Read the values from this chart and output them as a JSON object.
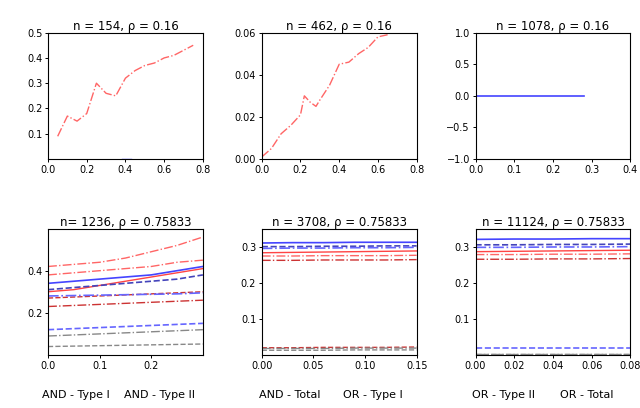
{
  "panels": [
    {
      "title": "n = 154, ρ = 0.16",
      "xlim": [
        0,
        0.8
      ],
      "ylim": [
        0,
        0.5
      ],
      "yticks": [
        0.1,
        0.2,
        0.3,
        0.4,
        0.5
      ],
      "xticks": [
        0,
        0.2,
        0.4,
        0.6,
        0.8
      ],
      "lines": [
        {
          "color": "#FF6666",
          "style": "-.",
          "lw": 1.0,
          "x": [
            0.05,
            0.1,
            0.15,
            0.2,
            0.25,
            0.3,
            0.35,
            0.4,
            0.45,
            0.5,
            0.55,
            0.6,
            0.65,
            0.7,
            0.75
          ],
          "y": [
            0.09,
            0.17,
            0.15,
            0.18,
            0.3,
            0.26,
            0.25,
            0.32,
            0.35,
            0.37,
            0.38,
            0.4,
            0.41,
            0.43,
            0.45
          ]
        },
        {
          "color": "#4444FF",
          "style": "-",
          "lw": 1.0,
          "x": [
            0.38,
            0.43
          ],
          "y": [
            0.002,
            0.002
          ]
        }
      ]
    },
    {
      "title": "n = 462, ρ = 0.16",
      "xlim": [
        0,
        0.8
      ],
      "ylim": [
        0,
        0.06
      ],
      "yticks": [
        0,
        0.02,
        0.04,
        0.06
      ],
      "xticks": [
        0,
        0.2,
        0.4,
        0.6,
        0.8
      ],
      "lines": [
        {
          "color": "#FF6666",
          "style": "-.",
          "lw": 1.0,
          "x": [
            0.0,
            0.05,
            0.1,
            0.15,
            0.2,
            0.22,
            0.25,
            0.28,
            0.3,
            0.35,
            0.4,
            0.45,
            0.5,
            0.55,
            0.6,
            0.65
          ],
          "y": [
            0.001,
            0.005,
            0.012,
            0.016,
            0.021,
            0.03,
            0.027,
            0.025,
            0.028,
            0.035,
            0.045,
            0.046,
            0.05,
            0.053,
            0.058,
            0.059
          ]
        }
      ]
    },
    {
      "title": "n = 1078, ρ = 0.16",
      "xlim": [
        0,
        0.4
      ],
      "ylim": [
        -1,
        1
      ],
      "yticks": [
        -1,
        -0.5,
        0,
        0.5,
        1
      ],
      "xticks": [
        0,
        0.1,
        0.2,
        0.3,
        0.4
      ],
      "lines": [
        {
          "color": "#4444FF",
          "style": "-",
          "lw": 1.2,
          "x": [
            0.0,
            0.28
          ],
          "y": [
            0.0,
            0.0
          ]
        }
      ]
    },
    {
      "title": "n= 1236, ρ = 0.75833",
      "xlim": [
        0,
        0.3
      ],
      "ylim": [
        0,
        0.6
      ],
      "yticks": [
        0.2,
        0.4
      ],
      "xticks": [
        0,
        0.1,
        0.2
      ],
      "lines": [
        {
          "color": "#FF6666",
          "style": "-.",
          "lw": 1.0,
          "x": [
            0.0,
            0.05,
            0.1,
            0.15,
            0.2,
            0.25,
            0.3
          ],
          "y": [
            0.42,
            0.43,
            0.44,
            0.46,
            0.49,
            0.52,
            0.56
          ]
        },
        {
          "color": "#FF6666",
          "style": "-.",
          "lw": 1.0,
          "x": [
            0.0,
            0.05,
            0.1,
            0.15,
            0.2,
            0.25,
            0.3
          ],
          "y": [
            0.38,
            0.39,
            0.4,
            0.41,
            0.42,
            0.44,
            0.45
          ]
        },
        {
          "color": "#FF4444",
          "style": "-",
          "lw": 1.0,
          "x": [
            0.0,
            0.05,
            0.1,
            0.15,
            0.2,
            0.25,
            0.3
          ],
          "y": [
            0.3,
            0.31,
            0.33,
            0.35,
            0.37,
            0.39,
            0.41
          ]
        },
        {
          "color": "#4444FF",
          "style": "-",
          "lw": 1.2,
          "x": [
            0.0,
            0.05,
            0.1,
            0.15,
            0.2,
            0.25,
            0.3
          ],
          "y": [
            0.34,
            0.35,
            0.36,
            0.37,
            0.38,
            0.4,
            0.42
          ]
        },
        {
          "color": "#4444BB",
          "style": "--",
          "lw": 1.2,
          "x": [
            0.0,
            0.05,
            0.1,
            0.15,
            0.2,
            0.25,
            0.3
          ],
          "y": [
            0.31,
            0.32,
            0.33,
            0.34,
            0.35,
            0.36,
            0.38
          ]
        },
        {
          "color": "#CC3333",
          "style": "--",
          "lw": 1.0,
          "x": [
            0.0,
            0.05,
            0.1,
            0.15,
            0.2,
            0.25,
            0.3
          ],
          "y": [
            0.27,
            0.275,
            0.28,
            0.285,
            0.29,
            0.295,
            0.3
          ]
        },
        {
          "color": "#CC3333",
          "style": "-.",
          "lw": 1.0,
          "x": [
            0.0,
            0.05,
            0.1,
            0.15,
            0.2,
            0.25,
            0.3
          ],
          "y": [
            0.23,
            0.235,
            0.24,
            0.245,
            0.25,
            0.255,
            0.26
          ]
        },
        {
          "color": "#6666FF",
          "style": "-.",
          "lw": 1.2,
          "x": [
            0.0,
            0.05,
            0.1,
            0.15,
            0.2,
            0.25,
            0.3
          ],
          "y": [
            0.28,
            0.282,
            0.284,
            0.286,
            0.288,
            0.29,
            0.295
          ]
        },
        {
          "color": "#6666FF",
          "style": "--",
          "lw": 1.2,
          "x": [
            0.0,
            0.05,
            0.1,
            0.15,
            0.2,
            0.25,
            0.3
          ],
          "y": [
            0.12,
            0.125,
            0.13,
            0.135,
            0.14,
            0.145,
            0.15
          ]
        },
        {
          "color": "#888888",
          "style": "-.",
          "lw": 1.0,
          "x": [
            0.0,
            0.05,
            0.1,
            0.15,
            0.2,
            0.25,
            0.3
          ],
          "y": [
            0.09,
            0.095,
            0.1,
            0.105,
            0.11,
            0.115,
            0.12
          ]
        },
        {
          "color": "#888888",
          "style": "--",
          "lw": 1.0,
          "x": [
            0.0,
            0.05,
            0.1,
            0.15,
            0.2,
            0.25,
            0.3
          ],
          "y": [
            0.04,
            0.042,
            0.044,
            0.046,
            0.048,
            0.05,
            0.052
          ]
        }
      ]
    },
    {
      "title": "n = 3708, ρ = 0.75833",
      "xlim": [
        0,
        0.15
      ],
      "ylim": [
        0,
        0.35
      ],
      "yticks": [
        0.1,
        0.2,
        0.3
      ],
      "xticks": [
        0,
        0.05,
        0.1,
        0.15
      ],
      "lines": [
        {
          "color": "#4444FF",
          "style": "-",
          "lw": 1.2,
          "x": [
            0.0,
            0.03,
            0.06,
            0.09,
            0.12,
            0.15
          ],
          "y": [
            0.31,
            0.311,
            0.311,
            0.312,
            0.312,
            0.312
          ]
        },
        {
          "color": "#4444BB",
          "style": "--",
          "lw": 1.2,
          "x": [
            0.0,
            0.03,
            0.06,
            0.09,
            0.12,
            0.15
          ],
          "y": [
            0.3,
            0.3,
            0.301,
            0.301,
            0.302,
            0.302
          ]
        },
        {
          "color": "#6666FF",
          "style": "-.",
          "lw": 1.2,
          "x": [
            0.0,
            0.03,
            0.06,
            0.09,
            0.12,
            0.15
          ],
          "y": [
            0.295,
            0.296,
            0.296,
            0.297,
            0.297,
            0.298
          ]
        },
        {
          "color": "#FF4444",
          "style": "-",
          "lw": 1.0,
          "x": [
            0.0,
            0.03,
            0.06,
            0.09,
            0.12,
            0.15
          ],
          "y": [
            0.283,
            0.284,
            0.285,
            0.286,
            0.287,
            0.288
          ]
        },
        {
          "color": "#FF6666",
          "style": "-.",
          "lw": 1.0,
          "x": [
            0.0,
            0.03,
            0.06,
            0.09,
            0.12,
            0.15
          ],
          "y": [
            0.274,
            0.274,
            0.275,
            0.275,
            0.275,
            0.276
          ]
        },
        {
          "color": "#CC3333",
          "style": "-.",
          "lw": 1.0,
          "x": [
            0.0,
            0.03,
            0.06,
            0.09,
            0.12,
            0.15
          ],
          "y": [
            0.262,
            0.262,
            0.263,
            0.263,
            0.263,
            0.264
          ]
        },
        {
          "color": "#CC3333",
          "style": "--",
          "lw": 1.0,
          "x": [
            0.0,
            0.03,
            0.06,
            0.09,
            0.12,
            0.15
          ],
          "y": [
            0.02,
            0.02,
            0.021,
            0.021,
            0.021,
            0.022
          ]
        },
        {
          "color": "#888888",
          "style": "-.",
          "lw": 1.0,
          "x": [
            0.0,
            0.03,
            0.06,
            0.09,
            0.12,
            0.15
          ],
          "y": [
            0.018,
            0.018,
            0.018,
            0.019,
            0.019,
            0.019
          ]
        },
        {
          "color": "#888888",
          "style": "--",
          "lw": 1.0,
          "x": [
            0.0,
            0.03,
            0.06,
            0.09,
            0.12,
            0.15
          ],
          "y": [
            0.013,
            0.013,
            0.013,
            0.014,
            0.014,
            0.014
          ]
        }
      ]
    },
    {
      "title": "n = 11124, ρ = 0.75833",
      "xlim": [
        0,
        0.08
      ],
      "ylim": [
        0,
        0.35
      ],
      "yticks": [
        0.1,
        0.2,
        0.3
      ],
      "xticks": [
        0,
        0.02,
        0.04,
        0.06,
        0.08
      ],
      "lines": [
        {
          "color": "#4444FF",
          "style": "-",
          "lw": 1.2,
          "x": [
            0.0,
            0.02,
            0.04,
            0.06,
            0.08
          ],
          "y": [
            0.32,
            0.321,
            0.321,
            0.322,
            0.322
          ]
        },
        {
          "color": "#4444BB",
          "style": "--",
          "lw": 1.2,
          "x": [
            0.0,
            0.02,
            0.04,
            0.06,
            0.08
          ],
          "y": [
            0.305,
            0.305,
            0.306,
            0.306,
            0.307
          ]
        },
        {
          "color": "#6666FF",
          "style": "-.",
          "lw": 1.2,
          "x": [
            0.0,
            0.02,
            0.04,
            0.06,
            0.08
          ],
          "y": [
            0.298,
            0.298,
            0.299,
            0.299,
            0.3
          ]
        },
        {
          "color": "#FF4444",
          "style": "-",
          "lw": 1.0,
          "x": [
            0.0,
            0.02,
            0.04,
            0.06,
            0.08
          ],
          "y": [
            0.286,
            0.287,
            0.288,
            0.289,
            0.29
          ]
        },
        {
          "color": "#FF6666",
          "style": "-.",
          "lw": 1.0,
          "x": [
            0.0,
            0.02,
            0.04,
            0.06,
            0.08
          ],
          "y": [
            0.278,
            0.278,
            0.279,
            0.279,
            0.28
          ]
        },
        {
          "color": "#CC3333",
          "style": "-.",
          "lw": 1.0,
          "x": [
            0.0,
            0.02,
            0.04,
            0.06,
            0.08
          ],
          "y": [
            0.265,
            0.265,
            0.266,
            0.266,
            0.267
          ]
        },
        {
          "color": "#6666FF",
          "style": "--",
          "lw": 1.2,
          "x": [
            0.0,
            0.02,
            0.04,
            0.06,
            0.08
          ],
          "y": [
            0.018,
            0.018,
            0.018,
            0.018,
            0.018
          ]
        },
        {
          "color": "#888888",
          "style": "-.",
          "lw": 1.0,
          "x": [
            0.0,
            0.02,
            0.04,
            0.06,
            0.08
          ],
          "y": [
            0.004,
            0.004,
            0.004,
            0.004,
            0.004
          ]
        },
        {
          "color": "#888888",
          "style": "--",
          "lw": 1.0,
          "x": [
            0.0,
            0.02,
            0.04,
            0.06,
            0.08
          ],
          "y": [
            0.002,
            0.002,
            0.002,
            0.002,
            0.002
          ]
        }
      ]
    }
  ],
  "col_labels": [
    "AND - Type I",
    "AND - Type II",
    "AND - Total",
    "OR - Type I",
    "OR - Type II",
    "OR - Total"
  ],
  "label_fontsize": 8,
  "title_fontsize": 8.5,
  "bg_color": "#F0F0F0"
}
